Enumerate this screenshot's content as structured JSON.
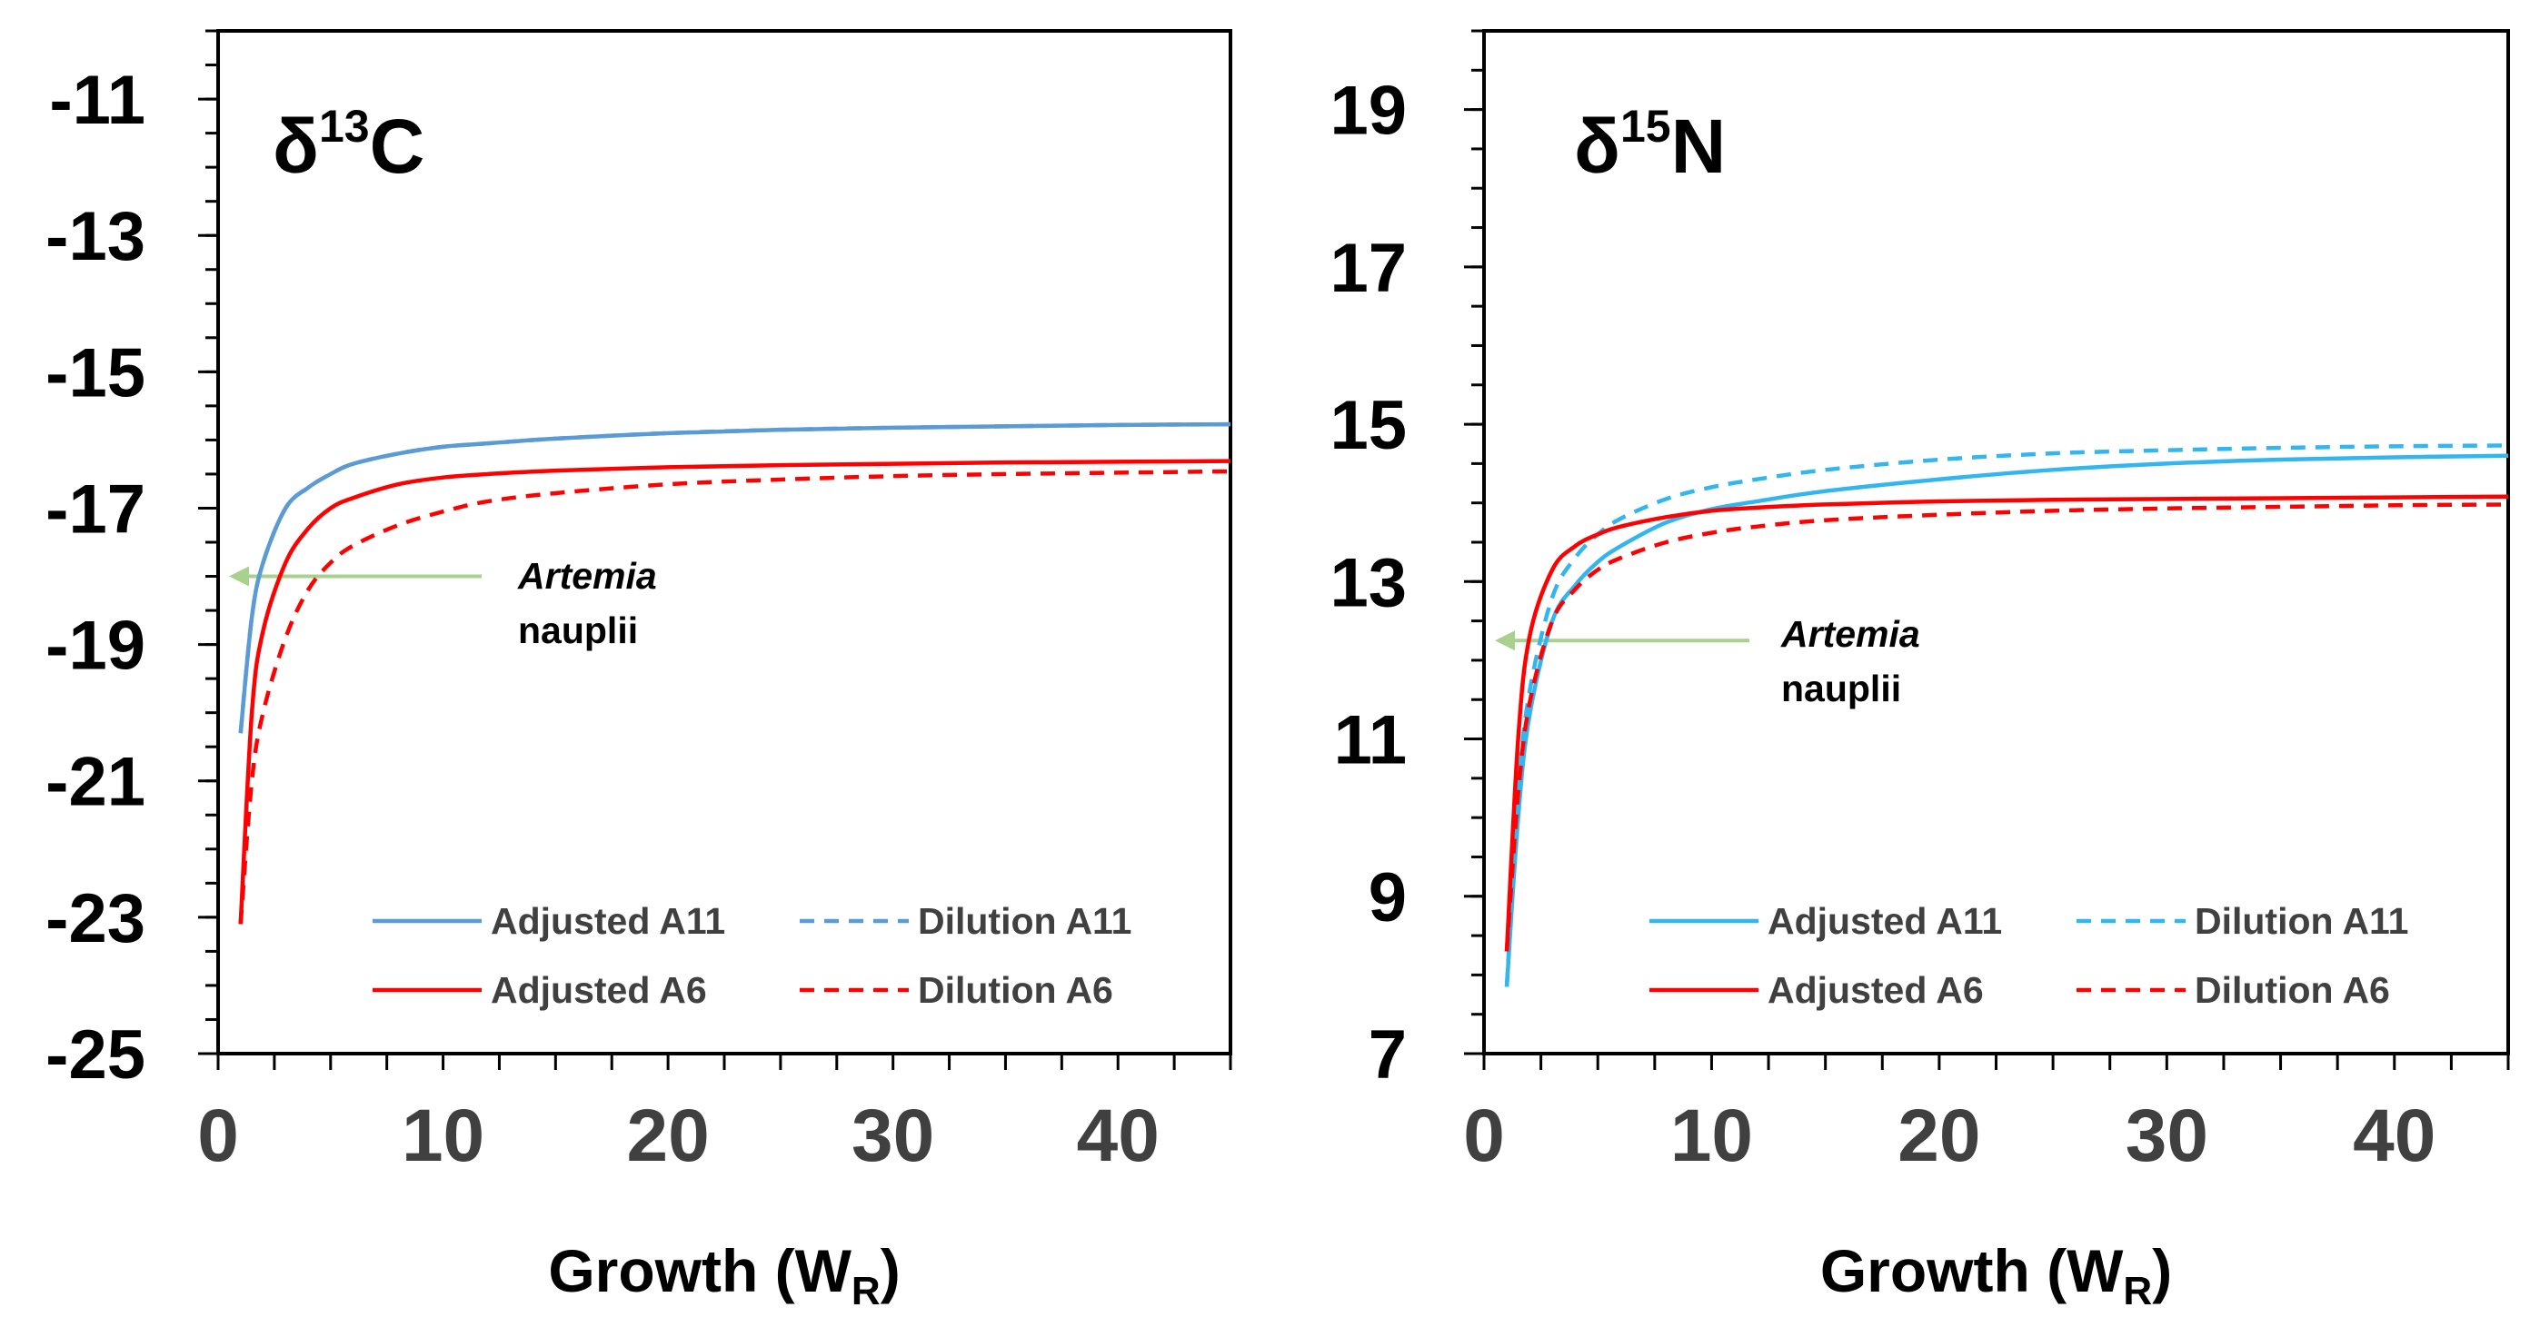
{
  "chart_data": [
    {
      "type": "line",
      "title": "δ13C",
      "title_parts": {
        "base": "δ",
        "sup": "13",
        "rest": "C"
      },
      "xlabel": "Growth (WR)",
      "xlabel_parts": {
        "base": "Growth (W",
        "sub": "R",
        "rest": ")"
      },
      "xlim": [
        0,
        45
      ],
      "ylim": [
        -25,
        -10
      ],
      "x_ticks": [
        0,
        10,
        20,
        30,
        40
      ],
      "x_tick_labels": [
        "0",
        "10",
        "20",
        "30",
        "40"
      ],
      "y_ticks": [
        -11,
        -13,
        -15,
        -17,
        -19,
        -21,
        -23,
        -25
      ],
      "y_tick_labels": [
        "-11",
        "-13",
        "-15",
        "-17",
        "-19",
        "-21",
        "-23",
        "-25"
      ],
      "annotation": {
        "line1": "Artemia",
        "line2": "nauplii",
        "arrow_to": {
          "x": 0,
          "y": -18
        }
      },
      "series": [
        {
          "name": "Adjusted A11",
          "color": "#5B9BD5",
          "dash": "solid",
          "x": [
            1,
            1.5,
            2,
            3,
            4,
            5,
            6,
            8,
            10,
            12,
            15,
            20,
            25,
            30,
            35,
            40,
            45
          ],
          "y": [
            -20.3,
            -18.6,
            -17.8,
            -17.0,
            -16.7,
            -16.5,
            -16.35,
            -16.2,
            -16.1,
            -16.05,
            -15.98,
            -15.9,
            -15.85,
            -15.82,
            -15.8,
            -15.78,
            -15.77
          ]
        },
        {
          "name": "Dilution A11",
          "color": "#5B9BD5",
          "dash": "dashed",
          "x": [
            1,
            1.5,
            2,
            3,
            4,
            5,
            6,
            8,
            10,
            12,
            15,
            20,
            25,
            30,
            35,
            40,
            45
          ],
          "y": [
            -20.3,
            -18.6,
            -17.8,
            -17.0,
            -16.7,
            -16.5,
            -16.35,
            -16.2,
            -16.1,
            -16.05,
            -15.98,
            -15.9,
            -15.85,
            -15.82,
            -15.8,
            -15.78,
            -15.77
          ]
        },
        {
          "name": "Adjusted A6",
          "color": "#FF0000",
          "dash": "solid",
          "x": [
            1,
            1.5,
            2,
            3,
            4,
            5,
            6,
            8,
            10,
            12,
            15,
            20,
            25,
            30,
            35,
            40,
            45
          ],
          "y": [
            -23.1,
            -20.0,
            -18.8,
            -17.8,
            -17.3,
            -17.0,
            -16.85,
            -16.65,
            -16.55,
            -16.5,
            -16.45,
            -16.4,
            -16.37,
            -16.35,
            -16.33,
            -16.32,
            -16.31
          ]
        },
        {
          "name": "Dilution A6",
          "color": "#FF0000",
          "dash": "dashed",
          "x": [
            1,
            1.5,
            2,
            3,
            4,
            5,
            6,
            8,
            10,
            12,
            15,
            20,
            25,
            30,
            35,
            40,
            45
          ],
          "y": [
            -23.1,
            -21.0,
            -20.0,
            -18.9,
            -18.2,
            -17.8,
            -17.55,
            -17.25,
            -17.05,
            -16.9,
            -16.78,
            -16.65,
            -16.58,
            -16.53,
            -16.5,
            -16.48,
            -16.46
          ]
        }
      ],
      "legend": {
        "placement": "bottom-right",
        "columns": 2
      }
    },
    {
      "type": "line",
      "title": "δ15N",
      "title_parts": {
        "base": "δ",
        "sup": "15",
        "rest": "N"
      },
      "xlabel": "Growth (WR)",
      "xlabel_parts": {
        "base": "Growth (W",
        "sub": "R",
        "rest": ")"
      },
      "xlim": [
        0,
        45
      ],
      "ylim": [
        7,
        20
      ],
      "x_ticks": [
        0,
        10,
        20,
        30,
        40
      ],
      "x_tick_labels": [
        "0",
        "10",
        "20",
        "30",
        "40"
      ],
      "y_ticks": [
        19,
        17,
        15,
        13,
        11,
        9,
        7
      ],
      "y_tick_labels": [
        "19",
        "17",
        "15",
        "13",
        "11",
        "9",
        "7"
      ],
      "annotation": {
        "line1": "Artemia",
        "line2": "nauplii",
        "arrow_to": {
          "x": 0,
          "y": 12.25
        }
      },
      "series": [
        {
          "name": "Adjusted A11",
          "color": "#33B5F0",
          "dash": "solid",
          "x": [
            1,
            1.5,
            2,
            3,
            4,
            5,
            6,
            8,
            10,
            12,
            15,
            20,
            25,
            30,
            35,
            40,
            45
          ],
          "y": [
            7.85,
            10.0,
            11.3,
            12.5,
            12.95,
            13.25,
            13.45,
            13.75,
            13.92,
            14.02,
            14.15,
            14.3,
            14.42,
            14.5,
            14.55,
            14.58,
            14.6
          ]
        },
        {
          "name": "Dilution A11",
          "color": "#33B5F0",
          "dash": "dashed",
          "x": [
            1,
            1.5,
            2,
            3,
            4,
            5,
            6,
            8,
            10,
            12,
            15,
            20,
            25,
            30,
            35,
            40,
            45
          ],
          "y": [
            7.85,
            10.3,
            11.6,
            12.8,
            13.3,
            13.6,
            13.8,
            14.05,
            14.2,
            14.3,
            14.42,
            14.55,
            14.63,
            14.67,
            14.7,
            14.72,
            14.73
          ]
        },
        {
          "name": "Adjusted A6",
          "color": "#FF0000",
          "dash": "solid",
          "x": [
            1,
            1.5,
            2,
            3,
            4,
            5,
            6,
            8,
            10,
            12,
            15,
            20,
            25,
            30,
            35,
            40,
            45
          ],
          "y": [
            8.3,
            11.0,
            12.3,
            13.15,
            13.45,
            13.6,
            13.7,
            13.82,
            13.9,
            13.94,
            13.98,
            14.02,
            14.04,
            14.05,
            14.06,
            14.07,
            14.08
          ]
        },
        {
          "name": "Dilution A6",
          "color": "#FF0000",
          "dash": "dashed",
          "x": [
            1,
            1.5,
            2,
            3,
            4,
            5,
            6,
            8,
            10,
            12,
            15,
            20,
            25,
            30,
            35,
            40,
            45
          ],
          "y": [
            8.3,
            10.3,
            11.45,
            12.5,
            12.9,
            13.15,
            13.3,
            13.5,
            13.62,
            13.7,
            13.78,
            13.85,
            13.9,
            13.93,
            13.95,
            13.97,
            13.98
          ]
        }
      ],
      "legend": {
        "placement": "bottom-right",
        "columns": 2
      }
    }
  ]
}
